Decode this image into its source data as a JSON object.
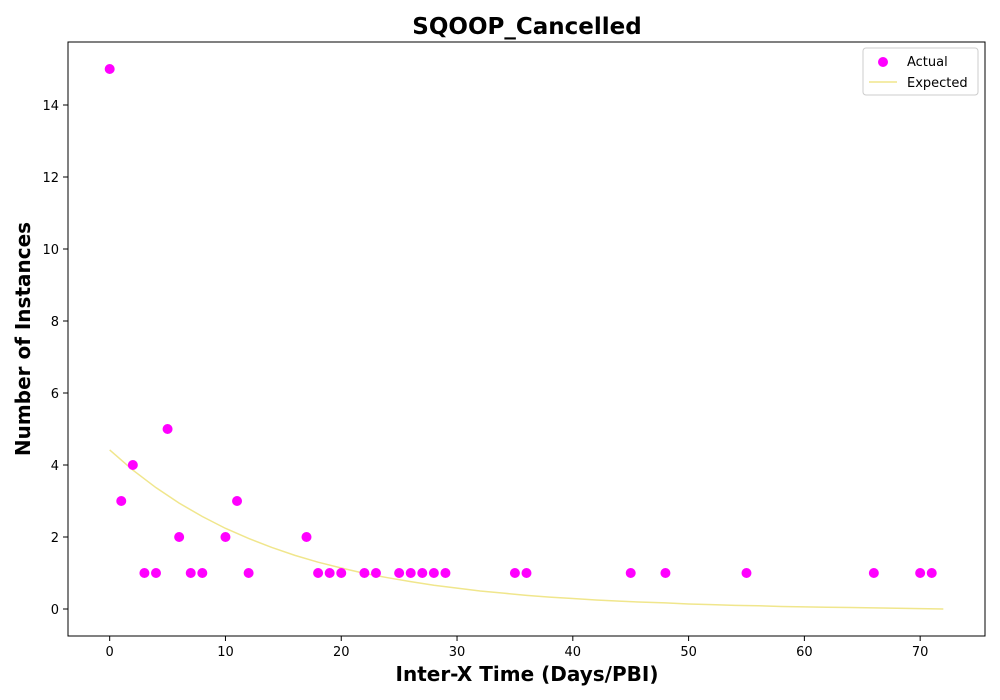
{
  "chart_data": {
    "type": "scatter",
    "title": "SQOOP_Cancelled",
    "xlabel": "Inter-X Time (Days/PBI)",
    "ylabel": "Number of Instances",
    "xlim": [
      -3.6,
      75.6
    ],
    "ylim": [
      -0.75,
      15.75
    ],
    "xticks": [
      0,
      10,
      20,
      30,
      40,
      50,
      60,
      70
    ],
    "yticks": [
      0,
      2,
      4,
      6,
      8,
      10,
      12,
      14
    ],
    "grid": false,
    "legend_position": "top-right",
    "series": [
      {
        "name": "Actual",
        "kind": "scatter",
        "color": "#ff00ff",
        "points": [
          [
            0,
            15
          ],
          [
            1,
            3
          ],
          [
            2,
            4
          ],
          [
            3,
            1
          ],
          [
            4,
            1
          ],
          [
            5,
            5
          ],
          [
            6,
            2
          ],
          [
            7,
            1
          ],
          [
            8,
            1
          ],
          [
            10,
            2
          ],
          [
            11,
            3
          ],
          [
            12,
            1
          ],
          [
            17,
            2
          ],
          [
            18,
            1
          ],
          [
            19,
            1
          ],
          [
            20,
            1
          ],
          [
            22,
            1
          ],
          [
            23,
            1
          ],
          [
            25,
            1
          ],
          [
            26,
            1
          ],
          [
            27,
            1
          ],
          [
            28,
            1
          ],
          [
            29,
            1
          ],
          [
            35,
            1
          ],
          [
            36,
            1
          ],
          [
            45,
            1
          ],
          [
            48,
            1
          ],
          [
            55,
            1
          ],
          [
            66,
            1
          ],
          [
            70,
            1
          ],
          [
            71,
            1
          ]
        ]
      },
      {
        "name": "Expected",
        "kind": "line",
        "color": "#f0e68c",
        "points": [
          [
            0,
            4.42
          ],
          [
            2,
            3.86
          ],
          [
            4,
            3.37
          ],
          [
            6,
            2.94
          ],
          [
            8,
            2.57
          ],
          [
            10,
            2.24
          ],
          [
            12,
            1.96
          ],
          [
            14,
            1.71
          ],
          [
            16,
            1.49
          ],
          [
            18,
            1.3
          ],
          [
            20,
            1.14
          ],
          [
            22,
            0.99
          ],
          [
            24,
            0.87
          ],
          [
            26,
            0.76
          ],
          [
            28,
            0.66
          ],
          [
            30,
            0.58
          ],
          [
            32,
            0.5
          ],
          [
            34,
            0.44
          ],
          [
            36,
            0.38
          ],
          [
            38,
            0.33
          ],
          [
            40,
            0.29
          ],
          [
            42,
            0.25
          ],
          [
            44,
            0.22
          ],
          [
            46,
            0.19
          ],
          [
            48,
            0.17
          ],
          [
            50,
            0.14
          ],
          [
            52,
            0.12
          ],
          [
            54,
            0.1
          ],
          [
            56,
            0.09
          ],
          [
            58,
            0.07
          ],
          [
            60,
            0.06
          ],
          [
            62,
            0.05
          ],
          [
            64,
            0.04
          ],
          [
            66,
            0.03
          ],
          [
            68,
            0.02
          ],
          [
            70,
            0.01
          ],
          [
            72,
            0.0
          ]
        ]
      }
    ]
  }
}
